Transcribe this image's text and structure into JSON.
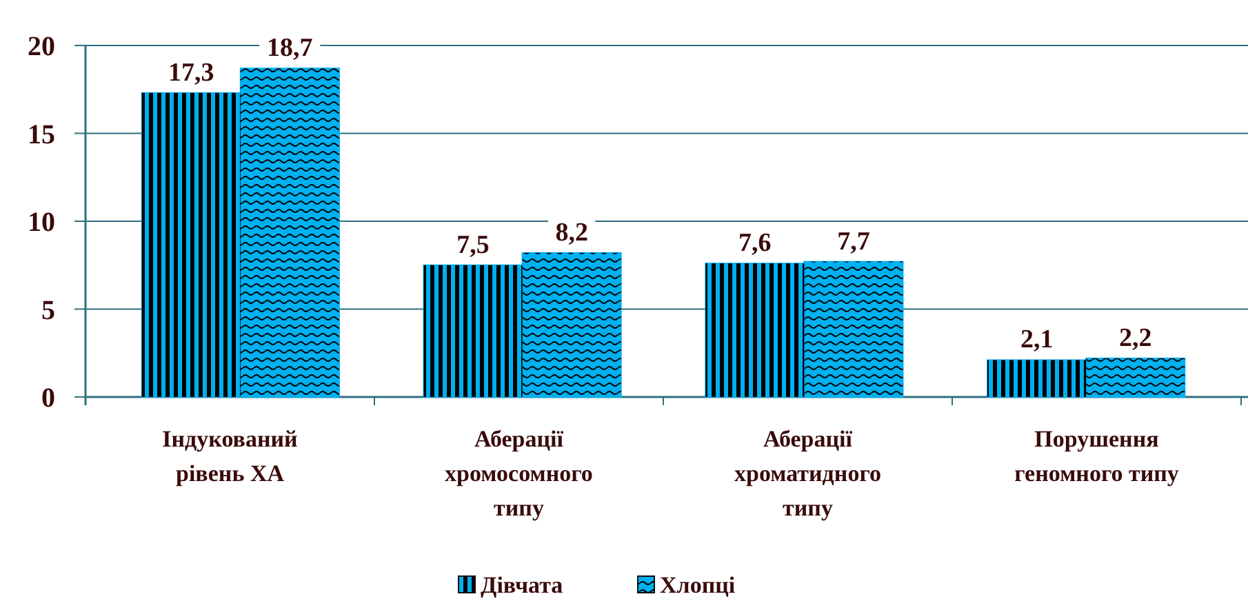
{
  "chart_data": {
    "type": "bar",
    "categories": [
      "Індукований рівень ХА",
      "Аберації хромосомного типу",
      "Аберації хроматидного типу",
      "Порушення геномного типу"
    ],
    "series": [
      {
        "name": "Дівчата",
        "color": "#00b0f0",
        "values": [
          17.3,
          7.5,
          7.6,
          2.1
        ],
        "value_labels": [
          "17,3",
          "7,5",
          "7,6",
          "2,1"
        ]
      },
      {
        "name": "Хлопці",
        "color": "#00b0f0",
        "values": [
          18.7,
          8.2,
          7.7,
          2.2
        ],
        "value_labels": [
          "18,7",
          "8,2",
          "7,7",
          "2,2"
        ]
      }
    ],
    "ylim": [
      0,
      20
    ],
    "yticks": [
      0,
      5,
      10,
      15,
      20
    ],
    "grid": "y",
    "legend": "bottom"
  }
}
